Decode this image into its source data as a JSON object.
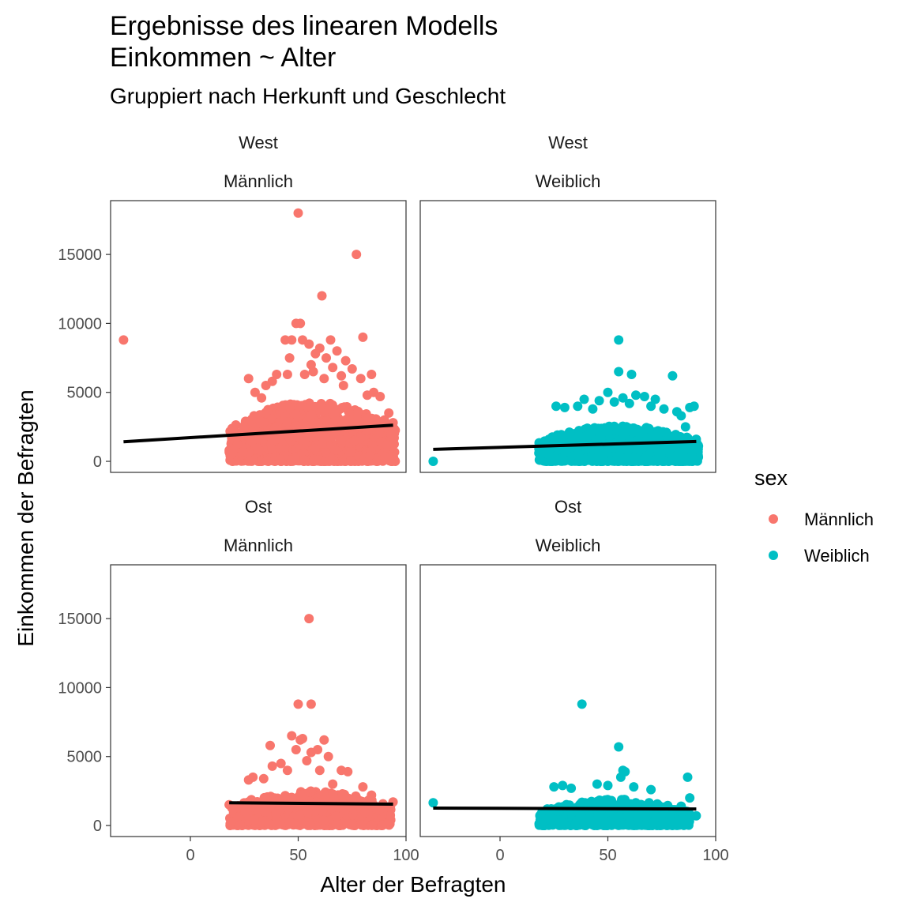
{
  "chart_data": {
    "type": "scatter",
    "title_line1": "Ergebnisse des linearen Modells",
    "title_line2": "Einkommen ~ Alter",
    "subtitle": "Gruppiert nach Herkunft und Geschlecht",
    "xlabel": "Alter der Befragten",
    "ylabel": "Einkommen der Befragten",
    "xlim": [
      -37,
      100
    ],
    "ylim": [
      -800,
      18900
    ],
    "x_ticks": [
      0,
      50,
      100
    ],
    "y_ticks": [
      0,
      5000,
      10000,
      15000
    ],
    "x_tick_labels": [
      "0",
      "50",
      "100"
    ],
    "y_tick_labels": [
      "0",
      "5000",
      "10000",
      "15000"
    ],
    "grid": false,
    "legend": {
      "title": "sex",
      "placement": "right",
      "entries": [
        {
          "label": "Männlich",
          "color": "#F8766D"
        },
        {
          "label": "Weiblich",
          "color": "#00BFC4"
        }
      ]
    },
    "panels": [
      {
        "row": 0,
        "col": 0,
        "strip_top": "West",
        "strip_bottom": "Männlich",
        "color": "#F8766D",
        "cloud": {
          "x_min": 18,
          "x_max": 95,
          "y_max_core": 4300,
          "n": 1100
        },
        "points": [
          [
            -31,
            8800
          ],
          [
            50,
            18000
          ],
          [
            77,
            15000
          ],
          [
            61,
            12000
          ],
          [
            49,
            10000
          ],
          [
            51,
            10000
          ],
          [
            80,
            9000
          ],
          [
            44,
            8800
          ],
          [
            47,
            8800
          ],
          [
            52,
            8800
          ],
          [
            55,
            8500
          ],
          [
            60,
            8200
          ],
          [
            65,
            8800
          ],
          [
            68,
            8000
          ],
          [
            46,
            7500
          ],
          [
            58,
            7800
          ],
          [
            63,
            7500
          ],
          [
            72,
            7300
          ],
          [
            75,
            6700
          ],
          [
            84,
            6300
          ],
          [
            27,
            6000
          ],
          [
            40,
            6300
          ],
          [
            53,
            6300
          ],
          [
            57,
            6500
          ],
          [
            66,
            6800
          ],
          [
            79,
            6000
          ],
          [
            35,
            5500
          ],
          [
            38,
            5800
          ],
          [
            45,
            6300
          ],
          [
            70,
            6200
          ],
          [
            30,
            5000
          ],
          [
            56,
            7000
          ],
          [
            62,
            6000
          ],
          [
            71,
            5500
          ],
          [
            85,
            5000
          ],
          [
            33,
            4600
          ],
          [
            82,
            4800
          ],
          [
            88,
            4700
          ],
          [
            90,
            3000
          ],
          [
            92,
            3500
          ],
          [
            94,
            2800
          ],
          [
            93,
            2000
          ],
          [
            89,
            1400
          ],
          [
            91,
            1200
          ],
          [
            20,
            2200
          ],
          [
            22,
            1800
          ],
          [
            19,
            500
          ],
          [
            25,
            2500
          ]
        ],
        "fit": {
          "x": [
            -31,
            94
          ],
          "y": [
            1420,
            2620
          ]
        }
      },
      {
        "row": 0,
        "col": 1,
        "strip_top": "West",
        "strip_bottom": "Weiblich",
        "color": "#00BFC4",
        "cloud": {
          "x_min": 18,
          "x_max": 92,
          "y_max_core": 2600,
          "n": 1100
        },
        "points": [
          [
            -31,
            0
          ],
          [
            55,
            8800
          ],
          [
            55,
            6500
          ],
          [
            61,
            6300
          ],
          [
            80,
            6200
          ],
          [
            50,
            5000
          ],
          [
            63,
            4800
          ],
          [
            67,
            4700
          ],
          [
            39,
            4500
          ],
          [
            46,
            4400
          ],
          [
            57,
            4600
          ],
          [
            72,
            4500
          ],
          [
            26,
            4000
          ],
          [
            30,
            3900
          ],
          [
            36,
            4000
          ],
          [
            43,
            3800
          ],
          [
            53,
            4300
          ],
          [
            60,
            4200
          ],
          [
            70,
            4000
          ],
          [
            76,
            3800
          ],
          [
            82,
            3600
          ],
          [
            88,
            3900
          ],
          [
            90,
            4000
          ],
          [
            84,
            3300
          ],
          [
            86,
            2500
          ],
          [
            91,
            1600
          ],
          [
            92,
            1100
          ],
          [
            89,
            600
          ]
        ],
        "fit": {
          "x": [
            -31,
            91
          ],
          "y": [
            870,
            1440
          ]
        }
      },
      {
        "row": 1,
        "col": 0,
        "strip_top": "Ost",
        "strip_bottom": "Männlich",
        "color": "#F8766D",
        "cloud": {
          "x_min": 18,
          "x_max": 93,
          "y_max_core": 2500,
          "n": 650
        },
        "points": [
          [
            55,
            15000
          ],
          [
            50,
            8800
          ],
          [
            56,
            8800
          ],
          [
            47,
            6500
          ],
          [
            52,
            6300
          ],
          [
            51,
            6200
          ],
          [
            62,
            6200
          ],
          [
            37,
            5800
          ],
          [
            49,
            5500
          ],
          [
            59,
            5500
          ],
          [
            56,
            5300
          ],
          [
            64,
            5000
          ],
          [
            42,
            4500
          ],
          [
            38,
            4300
          ],
          [
            45,
            4000
          ],
          [
            54,
            4700
          ],
          [
            60,
            4000
          ],
          [
            70,
            4000
          ],
          [
            73,
            3900
          ],
          [
            34,
            3400
          ],
          [
            27,
            3300
          ],
          [
            29,
            3500
          ],
          [
            66,
            3000
          ],
          [
            80,
            2800
          ],
          [
            84,
            2200
          ],
          [
            94,
            1700
          ],
          [
            90,
            1300
          ],
          [
            18,
            1500
          ],
          [
            20,
            1200
          ]
        ],
        "fit": {
          "x": [
            18,
            94
          ],
          "y": [
            1650,
            1550
          ]
        }
      },
      {
        "row": 1,
        "col": 1,
        "strip_top": "Ost",
        "strip_bottom": "Weiblich",
        "color": "#00BFC4",
        "cloud": {
          "x_min": 18,
          "x_max": 88,
          "y_max_core": 1900,
          "n": 650
        },
        "points": [
          [
            -31,
            1650
          ],
          [
            38,
            8800
          ],
          [
            55,
            5700
          ],
          [
            57,
            4000
          ],
          [
            58,
            3900
          ],
          [
            56,
            3500
          ],
          [
            87,
            3500
          ],
          [
            25,
            2800
          ],
          [
            29,
            2900
          ],
          [
            33,
            2700
          ],
          [
            45,
            3000
          ],
          [
            50,
            2900
          ],
          [
            62,
            2800
          ],
          [
            70,
            2600
          ],
          [
            88,
            2000
          ],
          [
            91,
            700
          ],
          [
            84,
            1400
          ]
        ],
        "fit": {
          "x": [
            -31,
            91
          ],
          "y": [
            1260,
            1200
          ]
        }
      }
    ]
  }
}
